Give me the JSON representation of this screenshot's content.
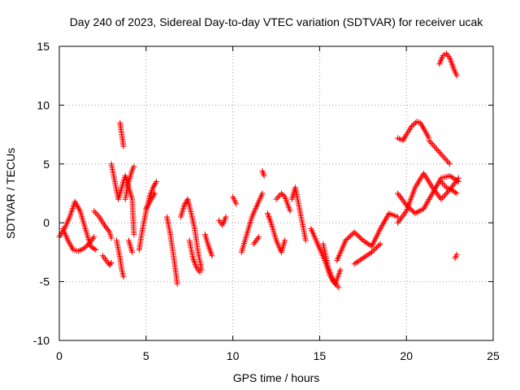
{
  "chart_data": {
    "type": "scatter",
    "title": "Day 240 of 2023, Sidereal Day-to-day VTEC variation (SDTVAR) for receiver ucak",
    "xlabel": "GPS time / hours",
    "ylabel": "SDTVAR / TECUs",
    "xlim": [
      0,
      25
    ],
    "ylim": [
      -10,
      15
    ],
    "xticks": [
      0,
      5,
      10,
      15,
      20,
      25
    ],
    "yticks": [
      -10,
      -5,
      0,
      5,
      10,
      15
    ],
    "grid": true,
    "marker": "+",
    "color": "#ff0000",
    "segments": [
      {
        "x": [
          0.0,
          0.3,
          0.6,
          0.9,
          1.2,
          1.5,
          1.8,
          2.1
        ],
        "y": [
          -1.2,
          -0.5,
          0.5,
          1.8,
          1.0,
          -0.5,
          -2.0,
          -2.3
        ]
      },
      {
        "x": [
          0.2,
          0.5,
          0.8,
          1.1,
          1.4,
          1.7,
          2.0
        ],
        "y": [
          -0.5,
          -1.5,
          -2.3,
          -2.4,
          -2.2,
          -1.8,
          -1.2
        ]
      },
      {
        "x": [
          2.0,
          2.3,
          2.6,
          2.9,
          3.0
        ],
        "y": [
          1.0,
          0.5,
          -0.2,
          -0.8,
          -1.3
        ]
      },
      {
        "x": [
          2.5,
          2.7,
          2.9,
          3.0
        ],
        "y": [
          -2.8,
          -3.2,
          -3.6,
          -3.4
        ]
      },
      {
        "x": [
          3.0,
          3.2,
          3.4,
          3.6,
          3.8,
          4.0,
          4.2,
          4.3
        ],
        "y": [
          5.0,
          3.5,
          2.0,
          3.0,
          4.0,
          3.0,
          2.0,
          -1.0
        ]
      },
      {
        "x": [
          3.3,
          3.5,
          3.6,
          3.7
        ],
        "y": [
          -1.5,
          -3.0,
          -4.0,
          -4.6
        ]
      },
      {
        "x": [
          3.5,
          3.6,
          3.7
        ],
        "y": [
          8.5,
          7.5,
          6.5
        ]
      },
      {
        "x": [
          3.8,
          4.0,
          4.2,
          4.3
        ],
        "y": [
          2.0,
          3.5,
          4.5,
          4.8
        ]
      },
      {
        "x": [
          4.0,
          4.2
        ],
        "y": [
          -1.5,
          -2.5
        ]
      },
      {
        "x": [
          4.6,
          4.8,
          5.0,
          5.2,
          5.4,
          5.6
        ],
        "y": [
          -2.3,
          -0.5,
          1.0,
          2.2,
          3.0,
          3.5
        ]
      },
      {
        "x": [
          5.0,
          5.3,
          5.5
        ],
        "y": [
          1.2,
          2.0,
          2.5
        ]
      },
      {
        "x": [
          6.2,
          6.4,
          6.6,
          6.8
        ],
        "y": [
          0.5,
          -1.0,
          -3.0,
          -5.2
        ]
      },
      {
        "x": [
          7.0,
          7.2,
          7.4,
          7.6,
          7.8,
          8.0,
          8.2
        ],
        "y": [
          0.5,
          1.5,
          2.0,
          0.8,
          -0.5,
          -2.5,
          -4.0
        ]
      },
      {
        "x": [
          7.5,
          7.7,
          7.9,
          8.1
        ],
        "y": [
          -1.5,
          -3.0,
          -3.8,
          -4.2
        ]
      },
      {
        "x": [
          8.4,
          8.6,
          8.8
        ],
        "y": [
          -1.0,
          -2.0,
          -2.8
        ]
      },
      {
        "x": [
          9.2,
          9.4,
          9.6
        ],
        "y": [
          0.2,
          -0.2,
          0.5
        ]
      },
      {
        "x": [
          10.0,
          10.2
        ],
        "y": [
          2.2,
          1.6
        ]
      },
      {
        "x": [
          10.5,
          10.8,
          11.1,
          11.4,
          11.7
        ],
        "y": [
          -2.5,
          -1.0,
          0.5,
          1.5,
          2.5
        ]
      },
      {
        "x": [
          11.2,
          11.5
        ],
        "y": [
          -1.8,
          -1.2
        ]
      },
      {
        "x": [
          11.7,
          11.8
        ],
        "y": [
          4.4,
          4.0
        ]
      },
      {
        "x": [
          12.0,
          12.2,
          12.5,
          12.8,
          13.0
        ],
        "y": [
          0.8,
          0.0,
          -1.5,
          -2.5,
          -1.5
        ]
      },
      {
        "x": [
          12.5,
          12.8,
          13.0,
          13.3
        ],
        "y": [
          2.0,
          2.5,
          2.2,
          1.0
        ]
      },
      {
        "x": [
          13.4,
          13.6,
          13.8,
          14.0,
          14.2
        ],
        "y": [
          2.0,
          3.0,
          1.5,
          0.0,
          -1.5
        ]
      },
      {
        "x": [
          14.5,
          14.8,
          15.0,
          15.3,
          15.6,
          15.9,
          16.2
        ],
        "y": [
          -0.5,
          -1.5,
          -2.2,
          -3.2,
          -4.5,
          -5.2,
          -4.0
        ]
      },
      {
        "x": [
          15.2,
          15.5,
          15.8,
          16.1
        ],
        "y": [
          -1.8,
          -3.8,
          -5.0,
          -5.5
        ]
      },
      {
        "x": [
          16.0,
          16.5,
          17.0,
          17.5,
          18.0,
          18.5,
          19.0,
          19.5
        ],
        "y": [
          -3.2,
          -1.5,
          -0.8,
          -1.5,
          -2.0,
          -0.5,
          0.8,
          0.5
        ]
      },
      {
        "x": [
          17.0,
          17.5,
          18.0,
          18.5
        ],
        "y": [
          -3.5,
          -3.0,
          -2.5,
          -1.8
        ]
      },
      {
        "x": [
          19.5,
          19.8,
          20.0,
          20.3,
          20.6,
          20.8,
          21.0,
          21.3
        ],
        "y": [
          7.2,
          7.0,
          7.5,
          8.2,
          8.6,
          8.5,
          8.0,
          7.2
        ]
      },
      {
        "x": [
          21.3,
          21.6,
          21.9,
          22.2,
          22.5
        ],
        "y": [
          7.0,
          6.5,
          6.0,
          5.5,
          5.0
        ]
      },
      {
        "x": [
          19.5,
          20.0,
          20.5,
          21.0,
          21.5,
          22.0,
          22.5,
          23.0
        ],
        "y": [
          0.0,
          1.0,
          3.0,
          4.2,
          3.0,
          2.0,
          2.8,
          3.8
        ]
      },
      {
        "x": [
          19.5,
          20.0,
          20.5,
          21.0,
          21.5,
          22.0,
          22.5,
          23.0
        ],
        "y": [
          2.5,
          1.5,
          0.8,
          1.2,
          2.5,
          3.8,
          4.0,
          3.5
        ]
      },
      {
        "x": [
          22.0,
          22.3,
          22.6,
          22.9
        ],
        "y": [
          3.5,
          3.0,
          2.8,
          2.5
        ]
      },
      {
        "x": [
          21.9,
          22.1,
          22.3,
          22.5,
          22.7,
          22.9
        ],
        "y": [
          13.5,
          14.2,
          14.4,
          14.0,
          13.2,
          12.5
        ]
      },
      {
        "x": [
          22.8,
          22.9
        ],
        "y": [
          -3.0,
          -2.7
        ]
      }
    ]
  }
}
